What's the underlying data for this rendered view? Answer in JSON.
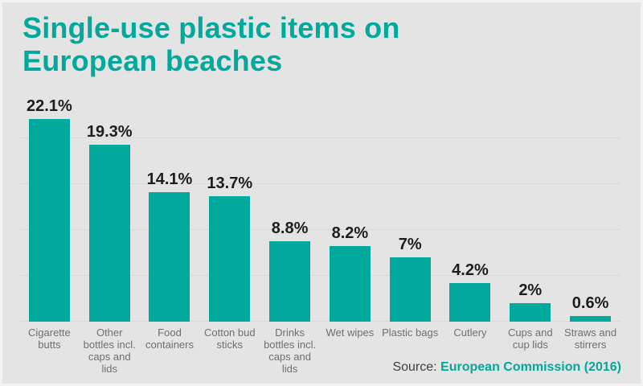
{
  "title": "Single-use plastic items on European beaches",
  "source": {
    "prefix": "Source: ",
    "name": "European Commission (2016)"
  },
  "colors": {
    "accent": "#00a99c",
    "background": "#e4e4e4",
    "gridline": "#d8d8d8",
    "value_label": "#1d1d1b",
    "category_label": "#6f6f6f",
    "source_text": "#3f3f3f"
  },
  "chart_data": {
    "type": "bar",
    "title": "Single-use plastic items on European beaches",
    "categories": [
      "Cigarette butts",
      "Other bottles incl. caps and lids",
      "Food containers",
      "Cotton bud sticks",
      "Drinks bottles incl. caps and lids",
      "Wet wipes",
      "Plastic bags",
      "Cutlery",
      "Cups and cup lids",
      "Straws and stirrers"
    ],
    "values": [
      22.1,
      19.3,
      14.1,
      13.7,
      8.8,
      8.2,
      7,
      4.2,
      2,
      0.6
    ],
    "value_labels": [
      "22.1%",
      "19.3%",
      "14.1%",
      "13.7%",
      "8.8%",
      "8.2%",
      "7%",
      "4.2%",
      "2%",
      "0.6%"
    ],
    "xlabel": "",
    "ylabel": "",
    "unit": "%",
    "ylim": [
      0,
      26.3
    ],
    "gridlines": [
      0,
      5,
      10,
      15,
      20
    ],
    "grid": true,
    "legend": "none",
    "bar_color": "#00a99c",
    "source": "European Commission (2016)"
  }
}
